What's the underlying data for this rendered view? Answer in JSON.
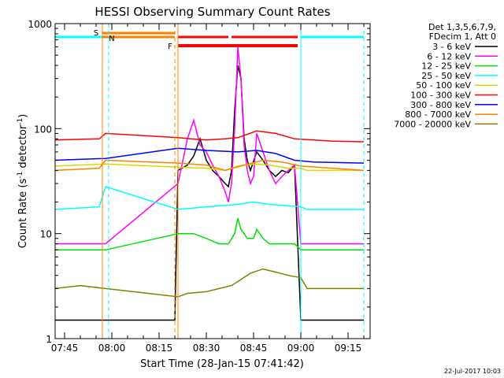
{
  "chart_data": {
    "type": "line",
    "title": "HESSI Observing Summary Count Rates",
    "xlabel": "Start Time (28-Jan-15 07:41:42)",
    "ylabel_main": "Count Rate (s",
    "ylabel_sup1": "-1",
    "ylabel_mid": " detector",
    "ylabel_sup2": "-1",
    "ylabel_end": ")",
    "yscale": "log",
    "ylim": [
      1,
      1000
    ],
    "xlim": [
      "07:42",
      "09:22"
    ],
    "yticks": [
      {
        "value": 1,
        "label": "1"
      },
      {
        "value": 10,
        "label": "10"
      },
      {
        "value": 100,
        "label": "100"
      },
      {
        "value": 1000,
        "label": "1000"
      }
    ],
    "xticks": [
      {
        "value": "07:45",
        "label": "07:45"
      },
      {
        "value": "08:00",
        "label": "08:00"
      },
      {
        "value": "08:15",
        "label": "08:15"
      },
      {
        "value": "08:30",
        "label": "08:30"
      },
      {
        "value": "08:45",
        "label": "08:45"
      },
      {
        "value": "09:00",
        "label": "09:00"
      },
      {
        "value": "09:15",
        "label": "09:15"
      }
    ],
    "legend_header": [
      "Det 1,3,5,6,7,9,",
      "FDecim 1, Att 0"
    ],
    "legend_position": "right",
    "footer_date": "22-Jul-2017 10:03",
    "series": [
      {
        "name": "3 - 6 keV",
        "color": "#000000",
        "x": [
          "07:42",
          "07:58",
          "08:20",
          "08:21",
          "08:24",
          "08:26",
          "08:28",
          "08:30",
          "08:32",
          "08:34",
          "08:36",
          "08:37",
          "08:38",
          "08:39",
          "08:40",
          "08:41",
          "08:42",
          "08:43",
          "08:44",
          "08:46",
          "08:48",
          "08:50",
          "08:52",
          "08:54",
          "08:56",
          "08:58",
          "09:00",
          "09:02",
          "09:20"
        ],
        "y": [
          1.5,
          1.5,
          1.5,
          40,
          45,
          55,
          80,
          50,
          40,
          35,
          30,
          28,
          40,
          150,
          400,
          300,
          80,
          50,
          40,
          60,
          50,
          40,
          35,
          40,
          38,
          45,
          1.5,
          1.5,
          1.5
        ]
      },
      {
        "name": "6 - 12 keV",
        "color": "#ff00ff",
        "x": [
          "07:42",
          "07:58",
          "08:21",
          "08:24",
          "08:26",
          "08:28",
          "08:30",
          "08:32",
          "08:34",
          "08:36",
          "08:37",
          "08:38",
          "08:39",
          "08:40",
          "08:41",
          "08:42",
          "08:43",
          "08:44",
          "08:45",
          "08:46",
          "08:48",
          "08:50",
          "08:52",
          "08:54",
          "08:56",
          "08:58",
          "09:00",
          "09:02",
          "09:20"
        ],
        "y": [
          8,
          8,
          30,
          80,
          120,
          70,
          60,
          45,
          35,
          25,
          20,
          30,
          100,
          600,
          300,
          70,
          40,
          30,
          35,
          90,
          60,
          40,
          30,
          35,
          40,
          45,
          8,
          8,
          8
        ]
      },
      {
        "name": "12 - 25 keV",
        "color": "#00e000",
        "x": [
          "07:42",
          "07:58",
          "08:21",
          "08:26",
          "08:30",
          "08:34",
          "08:37",
          "08:39",
          "08:40",
          "08:41",
          "08:43",
          "08:45",
          "08:46",
          "08:48",
          "08:50",
          "08:54",
          "08:58",
          "09:00",
          "09:02",
          "09:20"
        ],
        "y": [
          7,
          7,
          10,
          10,
          9,
          8,
          8,
          10,
          14,
          11,
          9,
          9,
          11,
          9,
          8,
          8,
          8,
          7,
          7,
          7
        ]
      },
      {
        "name": "25 - 50 keV",
        "color": "#00ffff",
        "x": [
          "07:42",
          "07:56",
          "07:58",
          "08:21",
          "08:30",
          "08:40",
          "08:45",
          "08:50",
          "09:00",
          "09:02",
          "09:20"
        ],
        "y": [
          17,
          18,
          28,
          17,
          18,
          19,
          20,
          19,
          18,
          17,
          17
        ]
      },
      {
        "name": "50 - 100 keV",
        "color": "#d8d800",
        "x": [
          "07:42",
          "07:58",
          "08:21",
          "08:30",
          "08:36",
          "08:40",
          "08:45",
          "08:50",
          "08:56",
          "09:00",
          "09:02",
          "09:20"
        ],
        "y": [
          44,
          46,
          43,
          42,
          40,
          44,
          46,
          45,
          42,
          42,
          40,
          40
        ]
      },
      {
        "name": "100 - 300 keV",
        "color": "#ff0000",
        "x": [
          "07:42",
          "07:56",
          "07:58",
          "08:21",
          "08:25",
          "08:30",
          "08:36",
          "08:40",
          "08:46",
          "08:52",
          "08:58",
          "09:04",
          "09:10",
          "09:20"
        ],
        "y": [
          78,
          80,
          90,
          82,
          80,
          78,
          80,
          82,
          95,
          90,
          80,
          78,
          76,
          75
        ]
      },
      {
        "name": "300 - 800 keV",
        "color": "#0000ff",
        "x": [
          "07:42",
          "07:58",
          "08:21",
          "08:30",
          "08:40",
          "08:46",
          "08:52",
          "08:58",
          "09:04",
          "09:20"
        ],
        "y": [
          50,
          52,
          65,
          62,
          60,
          62,
          58,
          50,
          48,
          47
        ]
      },
      {
        "name": "800 - 7000 keV",
        "color": "#ff8000",
        "x": [
          "07:42",
          "07:56",
          "07:58",
          "08:21",
          "08:30",
          "08:36",
          "08:42",
          "08:48",
          "08:54",
          "09:00",
          "09:10",
          "09:20"
        ],
        "y": [
          40,
          42,
          50,
          47,
          45,
          40,
          45,
          50,
          48,
          44,
          42,
          40
        ]
      },
      {
        "name": "7000 - 20000 keV",
        "color": "#808000",
        "x": [
          "07:42",
          "07:50",
          "07:58",
          "08:21",
          "08:24",
          "08:30",
          "08:38",
          "08:40",
          "08:44",
          "08:48",
          "08:52",
          "08:56",
          "09:00",
          "09:02",
          "09:10",
          "09:20"
        ],
        "y": [
          3,
          3.2,
          3,
          2.5,
          2.7,
          2.8,
          3.2,
          3.5,
          4.2,
          4.6,
          4.3,
          4,
          3.8,
          3,
          3,
          3
        ]
      }
    ],
    "markers": [
      {
        "label": "S",
        "color": "#ff8000",
        "x": "07:57",
        "bar_end": "08:20",
        "style": "solid"
      },
      {
        "label": "N",
        "color": "#00ffff",
        "x": "07:59",
        "style": "dashed"
      },
      {
        "label": "F",
        "color": "#ff0000",
        "x": "08:20",
        "style": "dashed",
        "dash_color": "#ff8000"
      }
    ],
    "bars": [
      {
        "color": "#00ffff",
        "from": "07:42",
        "to": "07:59"
      },
      {
        "color": "#ff8000",
        "from": "07:57",
        "to": "08:20"
      },
      {
        "color": "#ff0000",
        "from": "08:21",
        "to": "08:37"
      },
      {
        "color": "#ff0000",
        "from": "08:38",
        "to": "08:59"
      },
      {
        "color": "#00ffff",
        "from": "09:00",
        "to": "09:20"
      }
    ],
    "vlines": [
      {
        "x": "07:57",
        "color": "#ff8000",
        "style": "solid"
      },
      {
        "x": "07:59",
        "color": "#00ffff",
        "style": "dashed"
      },
      {
        "x": "08:20",
        "color": "#ff8000",
        "style": "dashed"
      },
      {
        "x": "08:21",
        "color": "#ff8000",
        "style": "solid"
      },
      {
        "x": "09:00",
        "color": "#00ffff",
        "style": "solid"
      },
      {
        "x": "09:20",
        "color": "#00ffff",
        "style": "dashed"
      }
    ]
  }
}
